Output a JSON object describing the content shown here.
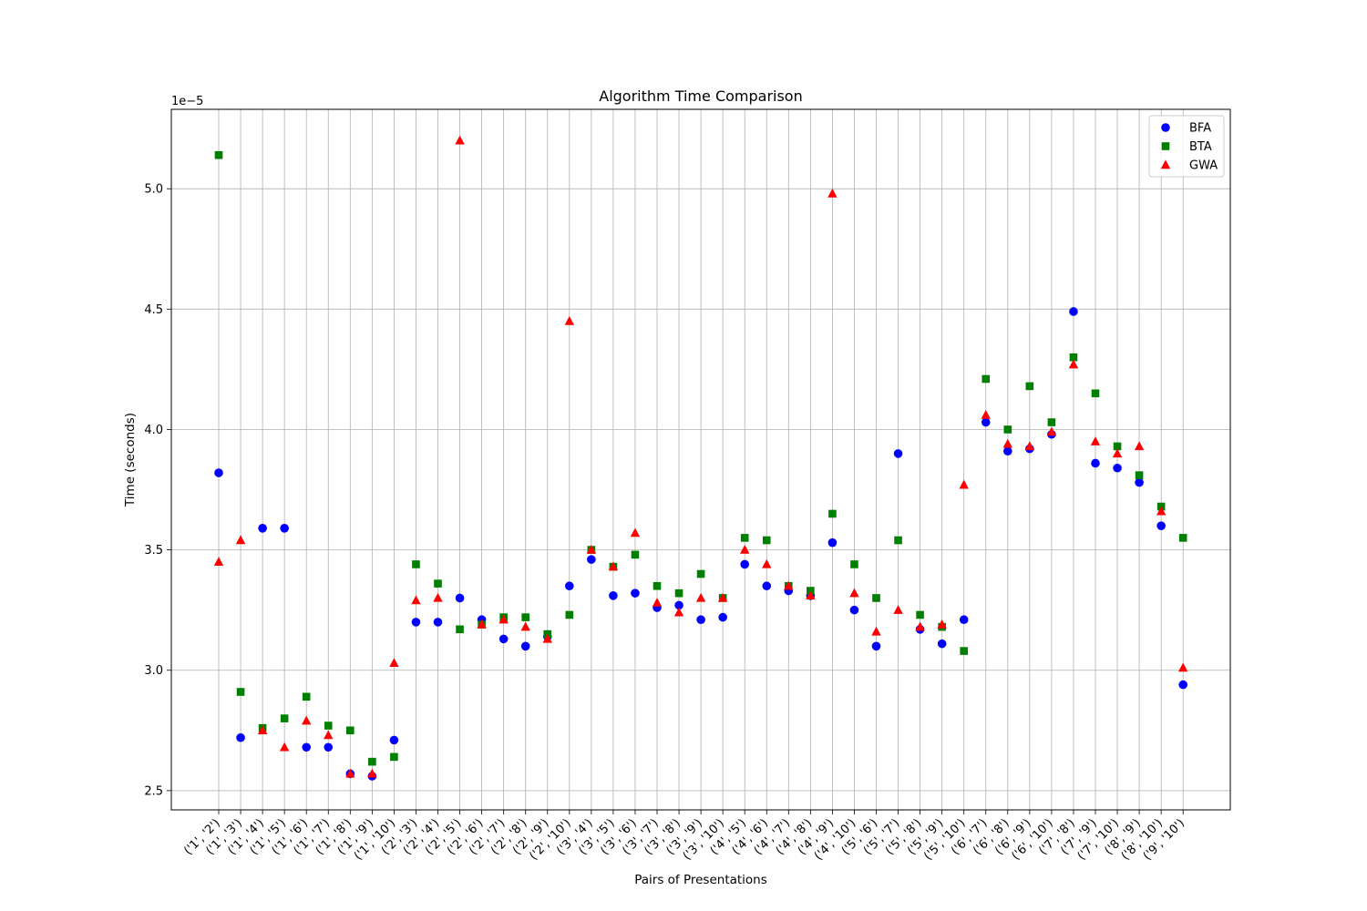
{
  "chart_data": {
    "type": "scatter",
    "title": "Algorithm Time Comparison",
    "xlabel": "Pairs of Presentations",
    "ylabel": "Time (seconds)",
    "y_offset_label": "1e−5",
    "y_scale": 1e-05,
    "ylim": [
      2.42,
      5.33
    ],
    "yticks": [
      "2.5",
      "3.0",
      "3.5",
      "4.0",
      "4.5",
      "5.0"
    ],
    "grid": true,
    "legend_position": "top-right",
    "categories": [
      "('1', '2')",
      "('1', '3')",
      "('1', '4')",
      "('1', '5')",
      "('1', '6')",
      "('1', '7')",
      "('1', '8')",
      "('1', '9')",
      "('1', '10')",
      "('2', '3')",
      "('2', '4')",
      "('2', '5')",
      "('2', '6')",
      "('2', '7')",
      "('2', '8')",
      "('2', '9')",
      "('2', '10')",
      "('3', '4')",
      "('3', '5')",
      "('3', '6')",
      "('3', '7')",
      "('3', '8')",
      "('3', '9')",
      "('3', '10')",
      "('4', '5')",
      "('4', '6')",
      "('4', '7')",
      "('4', '8')",
      "('4', '9')",
      "('4', '10')",
      "('5', '6')",
      "('5', '7')",
      "('5', '8')",
      "('5', '9')",
      "('5', '10')",
      "('6', '7')",
      "('6', '8')",
      "('6', '9')",
      "('6', '10')",
      "('7', '8')",
      "('7', '9')",
      "('7', '10')",
      "('8', '9')",
      "('8', '10')",
      "('9', '10')"
    ],
    "series": [
      {
        "name": "BFA",
        "marker": "circle",
        "color": "#0000ff",
        "values": [
          3.82,
          2.72,
          3.59,
          3.59,
          2.68,
          2.68,
          2.57,
          2.56,
          2.71,
          3.2,
          3.2,
          3.3,
          3.21,
          3.13,
          3.1,
          3.14,
          3.35,
          3.46,
          3.31,
          3.32,
          3.26,
          3.27,
          3.21,
          3.22,
          3.44,
          3.35,
          3.33,
          3.31,
          3.53,
          3.25,
          3.1,
          3.9,
          3.17,
          3.11,
          3.21,
          4.03,
          3.91,
          3.92,
          3.98,
          4.49,
          3.86,
          3.84,
          3.78,
          3.6,
          2.94
        ]
      },
      {
        "name": "BTA",
        "marker": "square",
        "color": "#008000",
        "values": [
          5.14,
          2.91,
          2.76,
          2.8,
          2.89,
          2.77,
          2.75,
          2.62,
          2.64,
          3.44,
          3.36,
          3.17,
          3.19,
          3.22,
          3.22,
          3.15,
          3.23,
          3.5,
          3.43,
          3.48,
          3.35,
          3.32,
          3.4,
          3.3,
          3.55,
          3.54,
          3.35,
          3.33,
          3.65,
          3.44,
          3.3,
          3.54,
          3.23,
          3.18,
          3.08,
          4.21,
          4.0,
          4.18,
          4.03,
          4.3,
          4.15,
          3.93,
          3.81,
          3.68,
          3.55
        ]
      },
      {
        "name": "GWA",
        "marker": "triangle",
        "color": "#ff0000",
        "values": [
          3.45,
          3.54,
          2.75,
          2.68,
          2.79,
          2.73,
          2.57,
          2.57,
          3.03,
          3.29,
          3.3,
          5.2,
          3.19,
          3.21,
          3.18,
          3.13,
          4.45,
          3.5,
          3.43,
          3.57,
          3.28,
          3.24,
          3.3,
          3.3,
          3.5,
          3.44,
          3.35,
          3.31,
          4.98,
          3.32,
          3.16,
          3.25,
          3.18,
          3.19,
          3.77,
          4.06,
          3.94,
          3.93,
          3.99,
          4.27,
          3.95,
          3.9,
          3.93,
          3.66,
          3.01
        ]
      }
    ]
  }
}
